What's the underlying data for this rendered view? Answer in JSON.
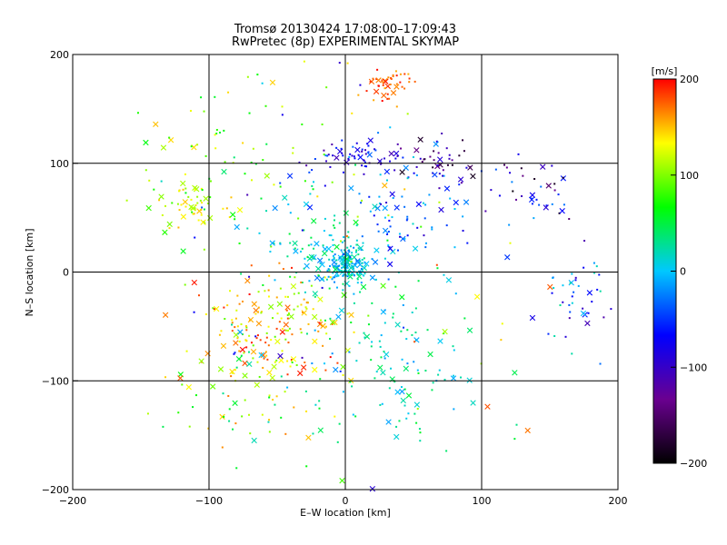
{
  "chart_data": {
    "type": "scatter",
    "title": "Tromsø 20130424 17:08:00–17:09:43",
    "subtitle": "RwPretec (8p) EXPERIMENTAL SKYMAP",
    "xlabel": "E–W location [km]",
    "ylabel": "N–S location [km]",
    "xlim": [
      -200,
      200
    ],
    "ylim": [
      -200,
      200
    ],
    "xticks": [
      -200,
      -100,
      0,
      100,
      200
    ],
    "yticks": [
      -200,
      -100,
      0,
      100,
      200
    ],
    "x_tick_labels": [
      "−200",
      "−100",
      "0",
      "100",
      "200"
    ],
    "y_tick_labels": [
      "−200",
      "−100",
      "0",
      "100",
      "200"
    ],
    "grid": true,
    "colorbar": {
      "label": "[m/s]",
      "range": [
        -200,
        200
      ],
      "ticks": [
        200,
        100,
        0,
        -100,
        -200
      ],
      "tick_labels": [
        "200",
        "100",
        "0",
        "−100",
        "−200"
      ],
      "colormap": [
        "#000000",
        "#6a0090",
        "#0000ff",
        "#00c8ff",
        "#00ff00",
        "#ffff00",
        "#ff0000"
      ]
    },
    "markers": {
      "small": "dot",
      "large": "x"
    },
    "clusters": [
      {
        "x": 0,
        "y": 5,
        "sx": 14,
        "sy": 12,
        "n": 140,
        "v": [
          -30,
          40
        ]
      },
      {
        "x": -20,
        "y": 20,
        "sx": 30,
        "sy": 30,
        "n": 90,
        "v": [
          -10,
          60
        ]
      },
      {
        "x": -50,
        "y": -50,
        "sx": 38,
        "sy": 35,
        "n": 160,
        "v": [
          90,
          200
        ]
      },
      {
        "x": -80,
        "y": -120,
        "sx": 45,
        "sy": 40,
        "n": 70,
        "v": [
          20,
          180
        ]
      },
      {
        "x": 30,
        "y": -80,
        "sx": 50,
        "sy": 55,
        "n": 120,
        "v": [
          -20,
          60
        ]
      },
      {
        "x": 10,
        "y": 105,
        "sx": 30,
        "sy": 10,
        "n": 60,
        "v": [
          -120,
          -20
        ]
      },
      {
        "x": 30,
        "y": 170,
        "sx": 12,
        "sy": 15,
        "n": 45,
        "v": [
          150,
          200
        ]
      },
      {
        "x": -115,
        "y": 60,
        "sx": 18,
        "sy": 15,
        "n": 40,
        "v": [
          100,
          150
        ]
      },
      {
        "x": 70,
        "y": 100,
        "sx": 25,
        "sy": 20,
        "n": 40,
        "v": [
          -200,
          -80
        ]
      },
      {
        "x": 140,
        "y": 75,
        "sx": 25,
        "sy": 20,
        "n": 35,
        "v": [
          -200,
          -20
        ]
      },
      {
        "x": 170,
        "y": -20,
        "sx": 20,
        "sy": 30,
        "n": 40,
        "v": [
          -120,
          30
        ]
      },
      {
        "x": 40,
        "y": 60,
        "sx": 40,
        "sy": 40,
        "n": 90,
        "v": [
          -100,
          20
        ]
      },
      {
        "x": -90,
        "y": 110,
        "sx": 60,
        "sy": 60,
        "n": 80,
        "v": [
          40,
          150
        ]
      },
      {
        "x": 0,
        "y": 0,
        "sx": 110,
        "sy": 110,
        "n": 110,
        "v": [
          -120,
          180
        ]
      }
    ]
  }
}
